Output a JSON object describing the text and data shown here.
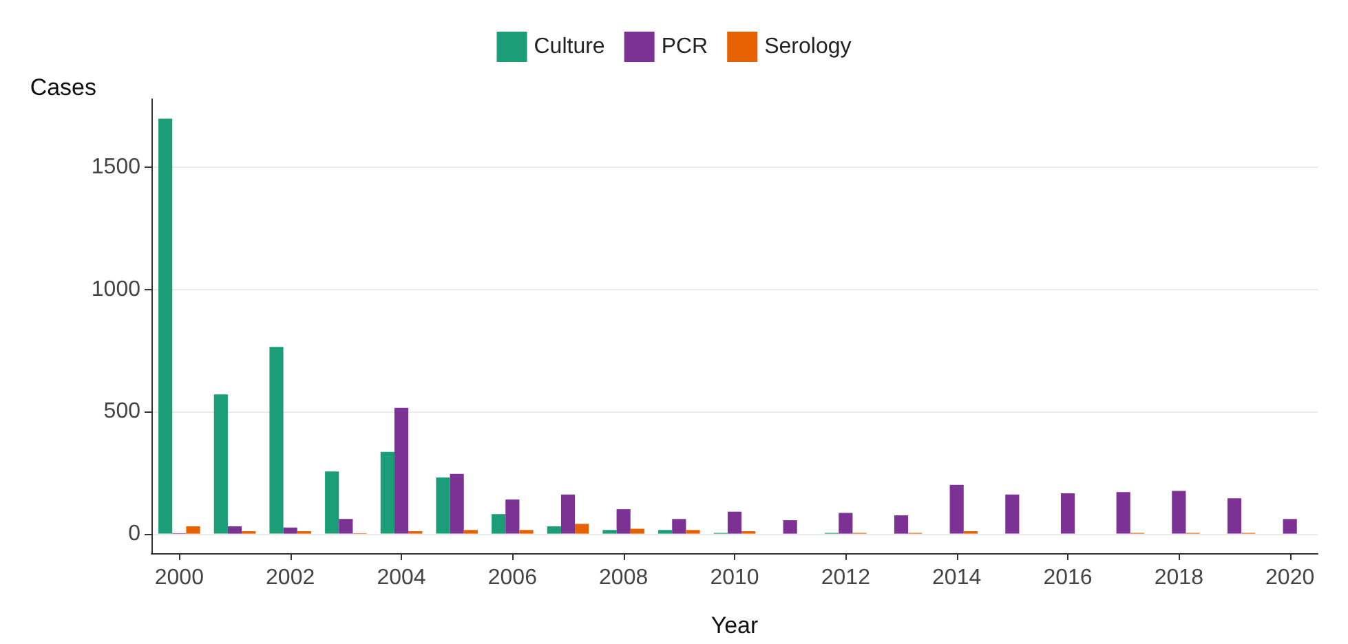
{
  "chart_data": {
    "type": "bar",
    "xlabel": "Year",
    "ylabel": "Cases",
    "categories": [
      "2000",
      null,
      "2002",
      null,
      "2004",
      null,
      "2006",
      null,
      "2008",
      null,
      "2010",
      null,
      "2012",
      null,
      "2014",
      null,
      "2016",
      null,
      "2018",
      null,
      "2020"
    ],
    "series": [
      {
        "name": "Culture",
        "color": "#1b9e77",
        "values": [
          1700,
          570,
          765,
          255,
          335,
          230,
          80,
          30,
          15,
          15,
          3,
          0,
          3,
          0,
          0,
          0,
          0,
          0,
          0,
          0,
          0
        ]
      },
      {
        "name": "PCR",
        "color": "#7b3294",
        "values": [
          2,
          30,
          25,
          60,
          515,
          245,
          140,
          160,
          100,
          60,
          90,
          55,
          85,
          75,
          200,
          160,
          165,
          170,
          175,
          145,
          60
        ]
      },
      {
        "name": "Serology",
        "color": "#e66101",
        "values": [
          30,
          10,
          10,
          2,
          10,
          15,
          15,
          40,
          20,
          15,
          10,
          0,
          3,
          3,
          10,
          0,
          0,
          3,
          3,
          3,
          0
        ]
      }
    ],
    "ylim": [
      -80,
      1780
    ],
    "yticks": [
      0,
      500,
      1000,
      1500
    ],
    "grid": "y",
    "legend": "top"
  }
}
